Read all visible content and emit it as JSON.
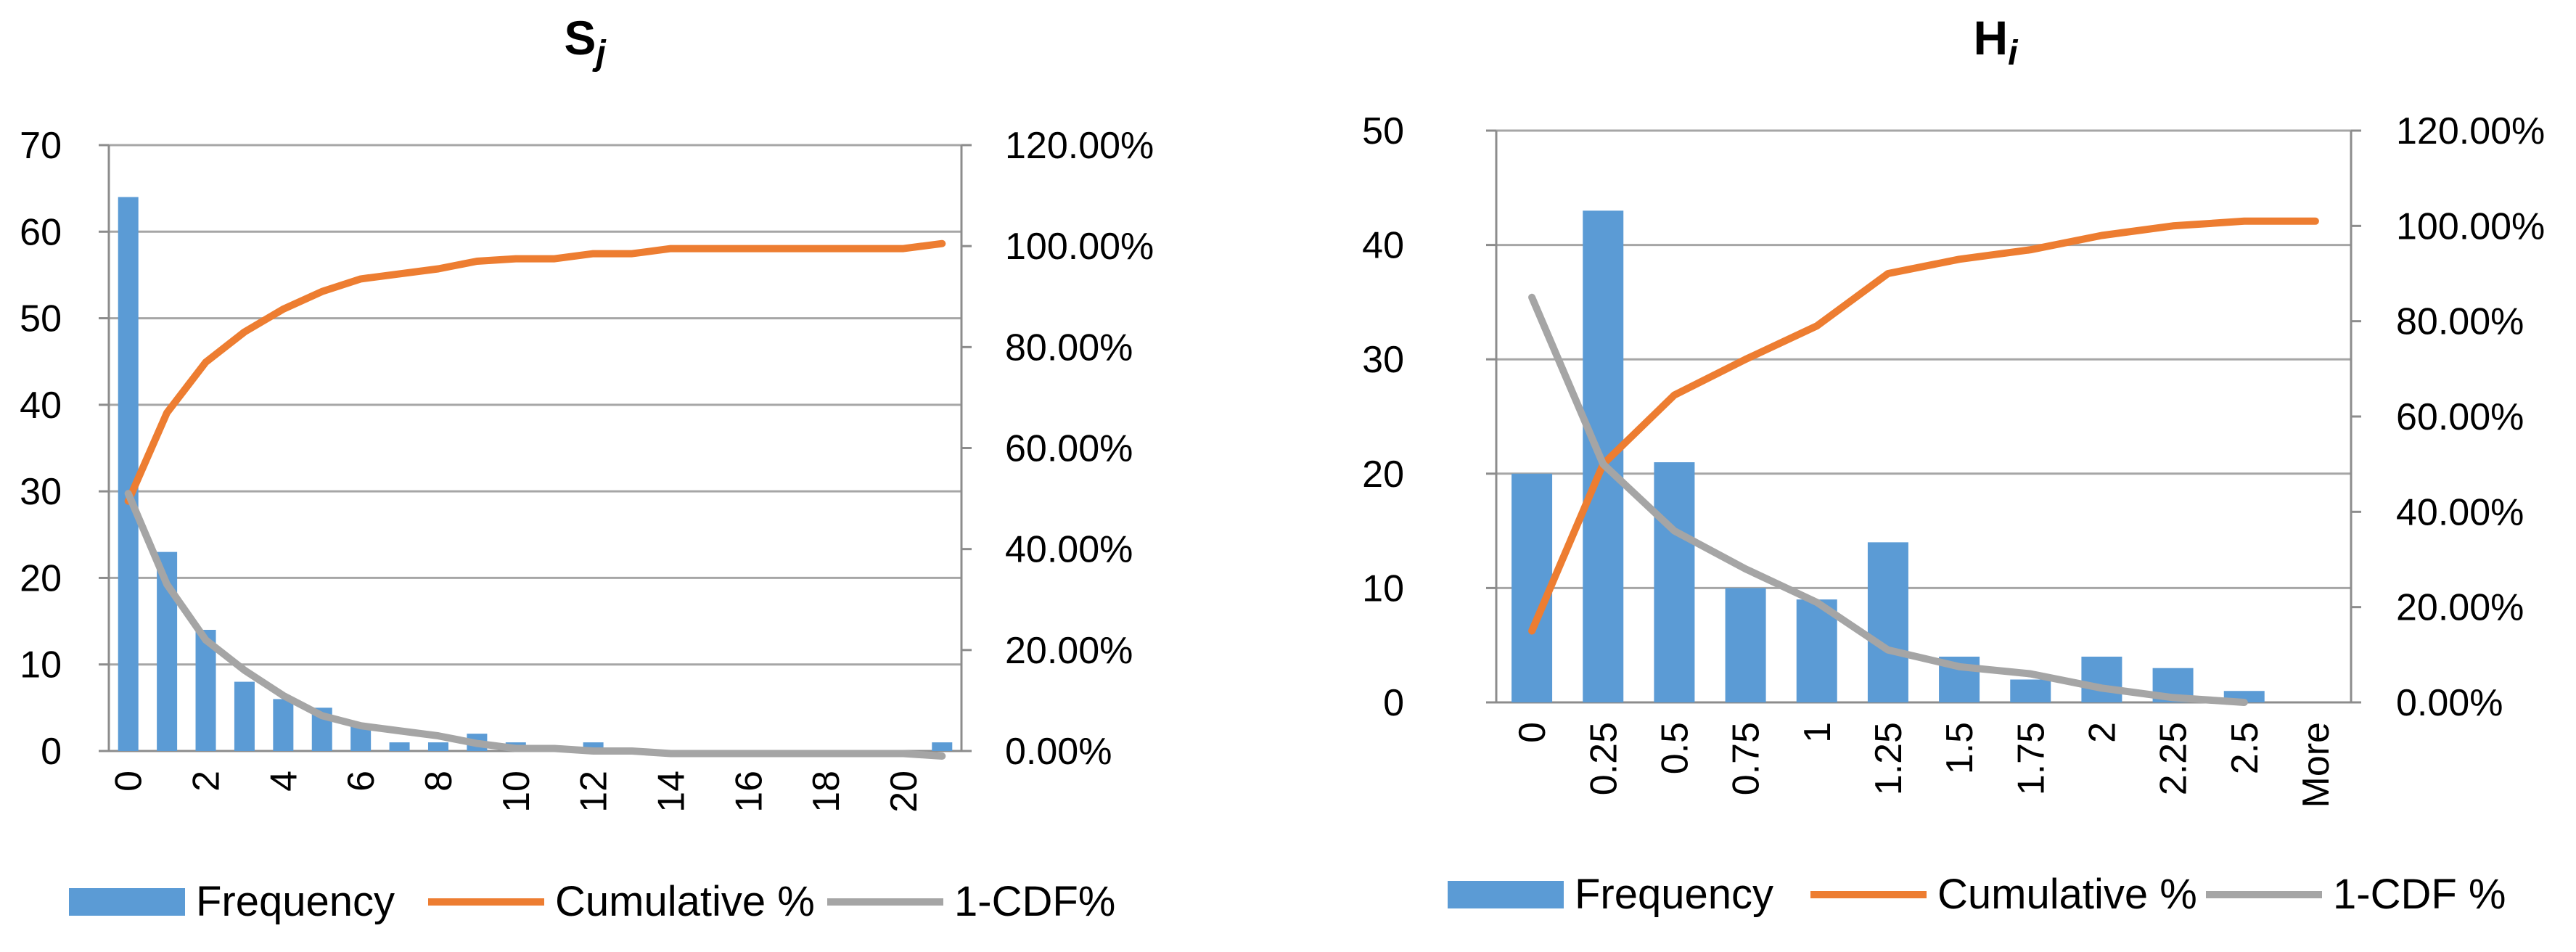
{
  "chart_data": [
    {
      "type": "bar+line",
      "title": "S",
      "title_subscript": "j",
      "categories": [
        "0",
        "1",
        "2",
        "3",
        "4",
        "5",
        "6",
        "7",
        "8",
        "9",
        "10",
        "11",
        "12",
        "13",
        "14",
        "15",
        "16",
        "17",
        "18",
        "19",
        "20",
        "21"
      ],
      "x_tick_labels": [
        "0",
        "",
        "2",
        "",
        "4",
        "",
        "6",
        "",
        "8",
        "",
        "10",
        "",
        "12",
        "",
        "14",
        "",
        "16",
        "",
        "18",
        "",
        "20",
        ""
      ],
      "series": [
        {
          "name": "Frequency",
          "kind": "bar",
          "axis": "left",
          "color": "#5B9BD5",
          "values": [
            64,
            23,
            14,
            8,
            6,
            5,
            3,
            1,
            1,
            2,
            1,
            0,
            1,
            0,
            0,
            0,
            0,
            0,
            0,
            0,
            0,
            1
          ]
        },
        {
          "name": "Cumulative %",
          "kind": "line",
          "axis": "right",
          "color": "#ED7D31",
          "values": [
            49.5,
            67,
            77,
            83,
            87.5,
            91,
            93.5,
            94.5,
            95.5,
            97,
            97.5,
            97.5,
            98.5,
            98.5,
            99.5,
            99.5,
            99.5,
            99.5,
            99.5,
            99.5,
            99.5,
            100.5
          ]
        },
        {
          "name": "1-CDF%",
          "kind": "line",
          "axis": "right",
          "color": "#A5A5A5",
          "values": [
            51,
            33,
            22,
            16,
            11,
            7,
            5,
            4,
            3,
            1.5,
            0.5,
            0.5,
            0,
            0,
            -0.5,
            -0.5,
            -0.5,
            -0.5,
            -0.5,
            -0.5,
            -0.5,
            -1
          ]
        }
      ],
      "y_left": {
        "min": 0,
        "max": 70,
        "step": 10,
        "tick_labels": [
          "0",
          "10",
          "20",
          "30",
          "40",
          "50",
          "60",
          "70"
        ]
      },
      "y_right": {
        "min": 0,
        "max": 120,
        "step": 20,
        "tick_labels": [
          "0.00%",
          "20.00%",
          "40.00%",
          "60.00%",
          "80.00%",
          "100.00%",
          "120.00%"
        ]
      },
      "grid": true,
      "legend_position": "bottom"
    },
    {
      "type": "bar+line",
      "title": "H",
      "title_subscript": "i",
      "categories": [
        "0",
        "0.25",
        "0.5",
        "0.75",
        "1",
        "1.25",
        "1.5",
        "1.75",
        "2",
        "2.25",
        "2.5",
        "More"
      ],
      "x_tick_labels": [
        "0",
        "0.25",
        "0.5",
        "0.75",
        "1",
        "1.25",
        "1.5",
        "1.75",
        "2",
        "2.25",
        "2.5",
        "More"
      ],
      "series": [
        {
          "name": "Frequency",
          "kind": "bar",
          "axis": "left",
          "color": "#5B9BD5",
          "values": [
            20,
            43,
            21,
            10,
            9,
            14,
            4,
            2,
            4,
            3,
            1,
            0
          ]
        },
        {
          "name": "Cumulative %",
          "kind": "line",
          "axis": "right",
          "color": "#ED7D31",
          "values": [
            15,
            50,
            64.5,
            72,
            79,
            90,
            93,
            95,
            98,
            100,
            101,
            101
          ]
        },
        {
          "name": "1-CDF %",
          "kind": "line",
          "axis": "right",
          "color": "#A5A5A5",
          "values": [
            85,
            50,
            36,
            28,
            21,
            11,
            7.5,
            6,
            3,
            1,
            0,
            null
          ]
        }
      ],
      "y_left": {
        "min": 0,
        "max": 50,
        "step": 10,
        "tick_labels": [
          "0",
          "10",
          "20",
          "30",
          "40",
          "50"
        ]
      },
      "y_right": {
        "min": 0,
        "max": 120,
        "step": 20,
        "tick_labels": [
          "0.00%",
          "20.00%",
          "40.00%",
          "60.00%",
          "80.00%",
          "100.00%",
          "120.00%"
        ]
      },
      "grid": true,
      "legend_position": "bottom"
    }
  ]
}
